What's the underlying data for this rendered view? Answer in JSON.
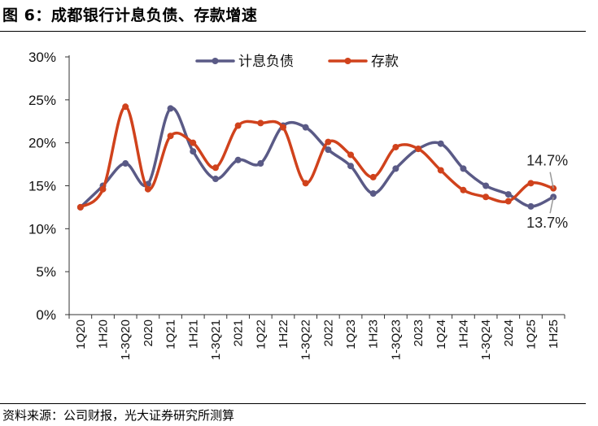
{
  "header": {
    "title": "图 6：成都银行计息负债、存款增速"
  },
  "footer": {
    "source": "资料来源：公司财报，光大证券研究所测算"
  },
  "colors": {
    "series1": "#5a5a86",
    "series2": "#d0421c"
  },
  "chart_data": {
    "type": "line",
    "title": "",
    "xlabel": "",
    "ylabel": "",
    "ylim": [
      0,
      30
    ],
    "yticks": [
      "0%",
      "5%",
      "10%",
      "15%",
      "20%",
      "25%",
      "30%"
    ],
    "grid": false,
    "legend": "top",
    "categories": [
      "1Q20",
      "1H20",
      "1-3Q20",
      "2020",
      "1Q21",
      "1H21",
      "1-3Q21",
      "2021",
      "1Q22",
      "1H22",
      "1-3Q22",
      "2022",
      "1Q23",
      "1H23",
      "1-3Q23",
      "2023",
      "1Q24",
      "1H24",
      "1-3Q24",
      "2024",
      "1Q25",
      "1H25"
    ],
    "series": [
      {
        "name": "计息负债",
        "color": "#5a5a86",
        "values": [
          12.5,
          15.0,
          17.6,
          15.2,
          24.0,
          19.0,
          15.8,
          18.0,
          17.6,
          22.0,
          21.8,
          19.2,
          17.3,
          14.1,
          17.0,
          19.3,
          19.9,
          17.0,
          15.0,
          14.0,
          12.6,
          13.7
        ]
      },
      {
        "name": "存款",
        "color": "#d0421c",
        "values": [
          12.5,
          14.6,
          24.2,
          14.6,
          20.8,
          20.0,
          17.1,
          22.0,
          22.3,
          21.8,
          15.3,
          20.1,
          18.6,
          16.0,
          19.5,
          19.3,
          16.8,
          14.5,
          13.7,
          13.2,
          15.3,
          14.7
        ]
      }
    ],
    "annotations": [
      {
        "text": "14.7%",
        "series": "存款",
        "category": "1H25"
      },
      {
        "text": "13.7%",
        "series": "计息负债",
        "category": "1H25"
      }
    ]
  }
}
